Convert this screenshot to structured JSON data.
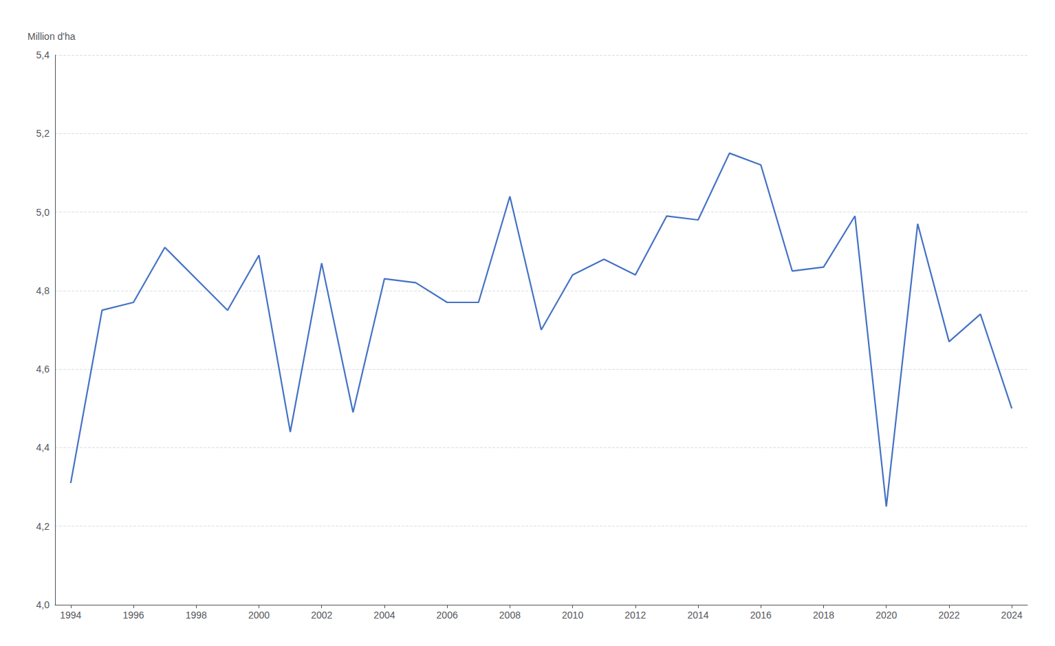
{
  "chart_data": {
    "type": "line",
    "ylabel": "Million d'ha",
    "x": [
      1994,
      1995,
      1996,
      1997,
      1998,
      1999,
      2000,
      2001,
      2002,
      2003,
      2004,
      2005,
      2006,
      2007,
      2008,
      2009,
      2010,
      2011,
      2012,
      2013,
      2014,
      2015,
      2016,
      2017,
      2018,
      2019,
      2020,
      2021,
      2022,
      2023,
      2024
    ],
    "values": [
      4.31,
      4.75,
      4.77,
      4.91,
      4.83,
      4.75,
      4.89,
      4.44,
      4.87,
      4.49,
      4.83,
      4.82,
      4.77,
      4.77,
      5.04,
      4.7,
      4.84,
      4.88,
      4.84,
      4.99,
      4.98,
      5.15,
      5.12,
      4.85,
      4.86,
      4.99,
      4.25,
      4.97,
      4.67,
      4.74,
      4.5
    ],
    "color": "#4472C4",
    "xlim": [
      1993.5,
      2024.5
    ],
    "xticks": [
      1994,
      1996,
      1998,
      2000,
      2002,
      2004,
      2006,
      2008,
      2010,
      2012,
      2014,
      2016,
      2018,
      2020,
      2022,
      2024
    ],
    "ylim": [
      4.0,
      5.4
    ],
    "yticks": [
      {
        "value": 4.0,
        "label": "4,0"
      },
      {
        "value": 4.2,
        "label": "4,2"
      },
      {
        "value": 4.4,
        "label": "4,4"
      },
      {
        "value": 4.6,
        "label": "4,6"
      },
      {
        "value": 4.8,
        "label": "4,8"
      },
      {
        "value": 5.0,
        "label": "5,0"
      },
      {
        "value": 5.2,
        "label": "5,2"
      },
      {
        "value": 5.4,
        "label": "5,4"
      }
    ],
    "grid": true
  }
}
